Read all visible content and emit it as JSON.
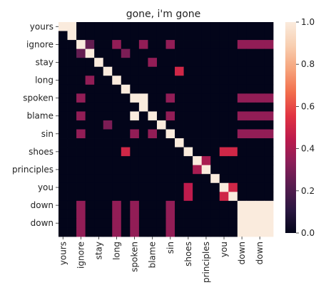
{
  "chart_data": {
    "type": "heatmap",
    "title": "gone, i'm gone",
    "row_labels": [
      "yours",
      "ignore",
      "stay",
      "long",
      "spoken",
      "blame",
      "sin",
      "shoes",
      "principles",
      "you",
      "down",
      "down"
    ],
    "col_labels": [
      "yours",
      "ignore",
      "stay",
      "long",
      "spoken",
      "blame",
      "sin",
      "shoes",
      "principles",
      "you",
      "down",
      "down"
    ],
    "tokens": [
      "yours",
      "",
      "ignore",
      "",
      "stay",
      "",
      "long",
      "",
      "spoken",
      "",
      "blame",
      "",
      "sin",
      "",
      "shoes",
      "",
      "principles",
      "",
      "you",
      "",
      "down",
      "",
      "down",
      ""
    ],
    "values": [
      [
        1,
        1,
        0,
        0,
        0,
        0,
        0,
        0,
        0,
        0,
        0,
        0,
        0,
        0,
        0,
        0,
        0,
        0,
        0,
        0,
        0,
        0,
        0,
        0
      ],
      [
        0,
        1,
        0,
        0,
        0,
        0,
        0,
        0,
        0,
        0,
        0,
        0,
        0,
        0,
        0,
        0,
        0,
        0,
        0,
        0,
        0,
        0,
        0,
        0
      ],
      [
        0,
        0,
        1,
        0.25,
        0,
        0,
        0,
        0,
        0,
        0,
        0,
        0,
        0,
        0,
        0,
        0,
        0,
        0,
        0,
        0,
        0,
        0,
        0,
        0
      ],
      [
        0,
        0,
        0.25,
        1,
        0,
        0,
        0,
        0,
        0,
        0,
        0,
        0,
        0,
        0,
        0,
        0,
        0,
        0,
        0,
        0,
        0,
        0,
        0,
        0
      ],
      [
        0,
        0,
        0,
        0,
        1,
        0,
        0,
        0,
        0,
        0,
        0,
        0,
        0,
        0,
        0,
        0,
        0,
        0,
        0,
        0,
        0,
        0,
        0,
        0
      ],
      [
        0,
        0,
        0,
        0,
        0,
        1,
        0,
        0,
        0,
        0,
        0,
        0,
        0,
        0,
        0,
        0,
        0,
        0,
        0,
        0,
        0,
        0,
        0,
        0
      ],
      [
        0,
        0,
        0,
        0,
        0,
        0,
        1,
        0,
        0,
        0,
        0,
        0,
        0,
        0,
        0,
        0,
        0,
        0,
        0,
        0,
        0,
        0,
        0,
        0
      ],
      [
        0,
        0,
        0,
        0,
        0,
        0,
        0,
        1,
        0,
        0,
        0,
        0,
        0,
        0,
        0,
        0,
        0,
        0,
        0,
        0,
        0,
        0,
        0,
        0
      ],
      [
        0,
        0,
        0,
        0,
        0,
        0,
        0,
        0,
        1,
        0,
        1,
        0,
        0,
        0,
        0,
        0,
        0,
        0,
        0,
        0,
        0,
        0,
        0,
        0
      ],
      [
        0,
        0,
        0,
        0,
        0,
        0,
        0,
        0,
        0,
        1,
        0,
        0,
        0,
        0,
        0,
        0,
        0,
        0,
        0,
        0,
        0,
        0,
        0,
        0
      ],
      [
        0,
        0,
        0,
        0,
        0,
        0,
        0,
        0,
        1,
        0,
        1,
        0,
        0,
        0,
        0,
        0,
        0,
        0,
        0,
        0,
        0,
        0,
        0,
        0
      ],
      [
        0,
        0,
        0,
        0,
        0,
        0,
        0,
        0,
        0,
        0,
        0,
        1,
        0,
        0,
        0,
        0,
        0,
        0,
        0,
        0,
        0,
        0,
        0,
        0
      ],
      [
        0,
        0,
        0,
        0,
        0,
        0,
        0,
        0,
        0,
        0,
        0,
        0,
        1,
        0,
        0,
        0,
        0,
        0,
        0,
        0,
        0,
        0,
        0,
        0
      ],
      [
        0,
        0,
        0,
        0,
        0,
        0,
        0,
        0,
        0,
        0,
        0,
        0,
        0,
        1,
        0,
        0,
        0,
        0,
        0,
        0,
        0,
        0,
        0,
        0
      ],
      [
        0,
        0,
        0,
        0,
        0,
        0,
        0,
        0,
        0,
        0,
        0,
        0,
        0,
        0,
        1,
        0,
        0,
        0,
        0,
        0,
        0,
        0,
        0,
        0
      ],
      [
        0,
        0,
        0,
        0,
        0,
        0,
        0,
        0,
        0,
        0,
        0,
        0,
        0,
        0,
        0,
        1,
        0,
        0,
        0,
        0,
        0,
        0,
        0,
        0
      ],
      [
        0,
        0,
        0,
        0,
        0,
        0,
        0,
        0,
        0,
        0,
        0,
        0,
        0,
        0,
        0,
        0,
        1,
        0,
        0,
        0,
        0,
        0,
        0,
        0
      ],
      [
        0,
        0,
        0,
        0,
        0,
        0,
        0,
        0,
        0,
        0,
        0,
        0,
        0,
        0,
        0,
        0,
        0,
        1,
        0,
        0,
        0,
        0,
        0,
        0
      ],
      [
        0,
        0,
        0,
        0,
        0,
        0,
        0,
        0,
        0,
        0,
        0,
        0,
        0,
        0,
        0,
        0,
        0,
        0,
        1,
        0,
        0,
        0,
        0,
        0
      ],
      [
        0,
        0,
        0,
        0,
        0,
        0,
        0,
        0,
        0,
        0,
        0,
        0,
        0,
        0,
        0,
        0,
        0,
        0,
        0,
        1,
        0,
        0,
        0,
        0
      ],
      [
        0,
        0,
        0,
        0,
        0,
        0,
        0,
        0,
        0,
        0,
        0,
        0,
        0,
        0,
        0,
        0,
        0,
        0,
        0,
        0,
        1,
        1,
        1,
        1
      ],
      [
        0,
        0,
        0,
        0,
        0,
        0,
        0,
        0,
        0,
        0,
        0,
        0,
        0,
        0,
        0,
        0,
        0,
        0,
        0,
        0,
        1,
        1,
        1,
        1
      ],
      [
        0,
        0,
        0,
        0,
        0,
        0,
        0,
        0,
        0,
        0,
        0,
        0,
        0,
        0,
        0,
        0,
        0,
        0,
        0,
        0,
        1,
        1,
        1,
        1
      ],
      [
        0,
        0,
        0,
        0,
        0,
        0,
        0,
        0,
        0,
        0,
        0,
        0,
        0,
        0,
        0,
        0,
        0,
        0,
        0,
        0,
        1,
        1,
        1,
        1
      ]
    ],
    "overrides": [
      {
        "r": 2,
        "c": 3,
        "v": 0.25
      },
      {
        "r": 3,
        "c": 2,
        "v": 0.25
      },
      {
        "r": 2,
        "c": 6,
        "v": 0.35
      },
      {
        "r": 2,
        "c": 9,
        "v": 0.35
      },
      {
        "r": 2,
        "c": 12,
        "v": 0.35
      },
      {
        "r": 2,
        "c": 20,
        "v": 0.35
      },
      {
        "r": 2,
        "c": 21,
        "v": 0.35
      },
      {
        "r": 2,
        "c": 22,
        "v": 0.35
      },
      {
        "r": 2,
        "c": 23,
        "v": 0.35
      },
      {
        "r": 3,
        "c": 7,
        "v": 0.3
      },
      {
        "r": 4,
        "c": 10,
        "v": 0.35
      },
      {
        "r": 5,
        "c": 13,
        "v": 0.5
      },
      {
        "r": 6,
        "c": 3,
        "v": 0.35
      },
      {
        "r": 8,
        "c": 2,
        "v": 0.35
      },
      {
        "r": 8,
        "c": 9,
        "v": 1
      },
      {
        "r": 8,
        "c": 12,
        "v": 0.35
      },
      {
        "r": 8,
        "c": 20,
        "v": 0.35
      },
      {
        "r": 8,
        "c": 21,
        "v": 0.35
      },
      {
        "r": 8,
        "c": 22,
        "v": 0.35
      },
      {
        "r": 8,
        "c": 23,
        "v": 0.35
      },
      {
        "r": 9,
        "c": 8,
        "v": 0.0
      },
      {
        "r": 10,
        "c": 8,
        "v": 1
      },
      {
        "r": 10,
        "c": 2,
        "v": 0.35
      },
      {
        "r": 10,
        "c": 12,
        "v": 0.35
      },
      {
        "r": 10,
        "c": 20,
        "v": 0.35
      },
      {
        "r": 10,
        "c": 21,
        "v": 0.35
      },
      {
        "r": 10,
        "c": 22,
        "v": 0.35
      },
      {
        "r": 10,
        "c": 23,
        "v": 0.35
      },
      {
        "r": 11,
        "c": 5,
        "v": 0.3
      },
      {
        "r": 12,
        "c": 2,
        "v": 0.35
      },
      {
        "r": 12,
        "c": 8,
        "v": 0.35
      },
      {
        "r": 12,
        "c": 10,
        "v": 0.35
      },
      {
        "r": 12,
        "c": 20,
        "v": 0.35
      },
      {
        "r": 12,
        "c": 21,
        "v": 0.35
      },
      {
        "r": 12,
        "c": 22,
        "v": 0.35
      },
      {
        "r": 12,
        "c": 23,
        "v": 0.35
      },
      {
        "r": 14,
        "c": 7,
        "v": 0.5
      },
      {
        "r": 14,
        "c": 18,
        "v": 0.5
      },
      {
        "r": 14,
        "c": 19,
        "v": 0.5
      },
      {
        "r": 15,
        "c": 16,
        "v": 0.4
      },
      {
        "r": 16,
        "c": 15,
        "v": 0.4
      },
      {
        "r": 18,
        "c": 14,
        "v": 0.45
      },
      {
        "r": 18,
        "c": 19,
        "v": 0.5
      },
      {
        "r": 19,
        "c": 14,
        "v": 0.45
      },
      {
        "r": 19,
        "c": 18,
        "v": 0.5
      },
      {
        "r": 20,
        "c": 2,
        "v": 0.35
      },
      {
        "r": 20,
        "c": 6,
        "v": 0.35
      },
      {
        "r": 20,
        "c": 8,
        "v": 0.35
      },
      {
        "r": 20,
        "c": 12,
        "v": 0.35
      },
      {
        "r": 21,
        "c": 2,
        "v": 0.35
      },
      {
        "r": 21,
        "c": 6,
        "v": 0.35
      },
      {
        "r": 21,
        "c": 8,
        "v": 0.35
      },
      {
        "r": 21,
        "c": 12,
        "v": 0.35
      },
      {
        "r": 22,
        "c": 2,
        "v": 0.35
      },
      {
        "r": 22,
        "c": 6,
        "v": 0.35
      },
      {
        "r": 22,
        "c": 8,
        "v": 0.35
      },
      {
        "r": 22,
        "c": 12,
        "v": 0.35
      },
      {
        "r": 23,
        "c": 2,
        "v": 0.35
      },
      {
        "r": 23,
        "c": 6,
        "v": 0.35
      },
      {
        "r": 23,
        "c": 8,
        "v": 0.35
      },
      {
        "r": 23,
        "c": 12,
        "v": 0.35
      }
    ],
    "colorbar": {
      "min": 0.0,
      "max": 1.0,
      "ticks": [
        "0.0",
        "0.2",
        "0.4",
        "0.6",
        "0.8",
        "1.0"
      ]
    },
    "colormap": [
      "#03051a",
      "#2b1741",
      "#571c4f",
      "#8a1e58",
      "#bc1a4c",
      "#e13342",
      "#f26e4c",
      "#f6a47c",
      "#f8cfb1",
      "#faebdd"
    ],
    "xlabel": "",
    "ylabel": ""
  }
}
